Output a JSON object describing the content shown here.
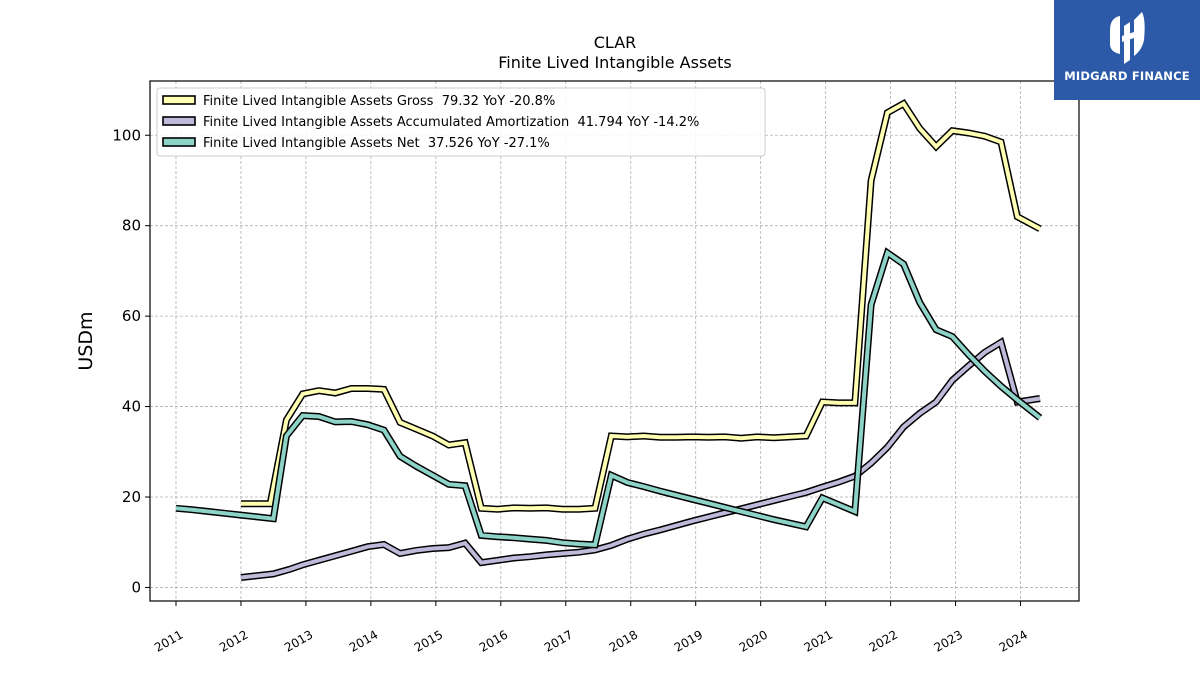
{
  "chart_data": {
    "type": "line",
    "title": "CLAR",
    "subtitle": "Finite Lived Intangible Assets",
    "ylabel": "USDm",
    "xlabel": "",
    "ylim": [
      -3,
      112
    ],
    "xlim": [
      2010.6,
      2024.9
    ],
    "yticks": [
      0,
      20,
      40,
      60,
      80,
      100
    ],
    "ytick_labels": [
      "0",
      "20",
      "40",
      "60",
      "80",
      "100"
    ],
    "xticks": [
      2011,
      2012,
      2013,
      2014,
      2015,
      2016,
      2017,
      2018,
      2019,
      2020,
      2021,
      2022,
      2023,
      2024
    ],
    "xtick_labels": [
      "2011",
      "2012",
      "2013",
      "2014",
      "2015",
      "2016",
      "2017",
      "2018",
      "2019",
      "2020",
      "2021",
      "2022",
      "2023",
      "2024"
    ],
    "grid": true,
    "legend_position": "top-left",
    "series": [
      {
        "name": "Finite Lived Intangible Assets Gross  79.32 YoY -20.8%",
        "color": "#ffffb3",
        "points": [
          [
            2012.0,
            18.5
          ],
          [
            2012.45,
            18.5
          ],
          [
            2012.7,
            37.0
          ],
          [
            2012.95,
            42.8
          ],
          [
            2013.2,
            43.5
          ],
          [
            2013.45,
            43.0
          ],
          [
            2013.7,
            44.0
          ],
          [
            2013.95,
            44.0
          ],
          [
            2014.2,
            43.8
          ],
          [
            2014.45,
            36.5
          ],
          [
            2014.7,
            35.0
          ],
          [
            2014.95,
            33.5
          ],
          [
            2015.2,
            31.5
          ],
          [
            2015.45,
            32.0
          ],
          [
            2015.7,
            17.5
          ],
          [
            2015.95,
            17.3
          ],
          [
            2016.2,
            17.6
          ],
          [
            2016.45,
            17.5
          ],
          [
            2016.7,
            17.6
          ],
          [
            2016.95,
            17.3
          ],
          [
            2017.2,
            17.3
          ],
          [
            2017.45,
            17.5
          ],
          [
            2017.7,
            33.5
          ],
          [
            2017.95,
            33.3
          ],
          [
            2018.2,
            33.5
          ],
          [
            2018.45,
            33.2
          ],
          [
            2018.7,
            33.2
          ],
          [
            2018.95,
            33.3
          ],
          [
            2019.2,
            33.2
          ],
          [
            2019.45,
            33.3
          ],
          [
            2019.7,
            33.0
          ],
          [
            2019.95,
            33.3
          ],
          [
            2020.2,
            33.1
          ],
          [
            2020.45,
            33.3
          ],
          [
            2020.7,
            33.5
          ],
          [
            2020.95,
            41.0
          ],
          [
            2021.2,
            40.8
          ],
          [
            2021.45,
            40.8
          ],
          [
            2021.7,
            90.0
          ],
          [
            2021.95,
            105.0
          ],
          [
            2022.2,
            107.0
          ],
          [
            2022.45,
            101.5
          ],
          [
            2022.7,
            97.5
          ],
          [
            2022.95,
            101.0
          ],
          [
            2023.2,
            100.5
          ],
          [
            2023.45,
            99.8
          ],
          [
            2023.7,
            98.5
          ],
          [
            2023.95,
            82.0
          ],
          [
            2024.3,
            79.32
          ]
        ]
      },
      {
        "name": "Finite Lived Intangible Assets Accumulated Amortization  41.794 YoY -14.2%",
        "color": "#bebada",
        "points": [
          [
            2012.0,
            2.2
          ],
          [
            2012.5,
            3.0
          ],
          [
            2012.75,
            4.0
          ],
          [
            2012.95,
            5.0
          ],
          [
            2013.2,
            6.0
          ],
          [
            2013.45,
            7.0
          ],
          [
            2013.7,
            8.0
          ],
          [
            2013.95,
            9.0
          ],
          [
            2014.2,
            9.5
          ],
          [
            2014.45,
            7.5
          ],
          [
            2014.7,
            8.2
          ],
          [
            2014.95,
            8.6
          ],
          [
            2015.2,
            8.8
          ],
          [
            2015.45,
            9.8
          ],
          [
            2015.7,
            5.5
          ],
          [
            2015.95,
            6.0
          ],
          [
            2016.2,
            6.5
          ],
          [
            2016.45,
            6.8
          ],
          [
            2016.7,
            7.2
          ],
          [
            2016.95,
            7.5
          ],
          [
            2017.2,
            7.8
          ],
          [
            2017.45,
            8.3
          ],
          [
            2017.7,
            9.3
          ],
          [
            2017.95,
            10.7
          ],
          [
            2018.2,
            11.8
          ],
          [
            2018.45,
            12.7
          ],
          [
            2018.7,
            13.7
          ],
          [
            2018.95,
            14.7
          ],
          [
            2019.2,
            15.6
          ],
          [
            2019.45,
            16.5
          ],
          [
            2019.7,
            17.4
          ],
          [
            2019.95,
            18.3
          ],
          [
            2020.2,
            19.2
          ],
          [
            2020.45,
            20.1
          ],
          [
            2020.7,
            21.0
          ],
          [
            2020.95,
            22.2
          ],
          [
            2021.2,
            23.3
          ],
          [
            2021.45,
            24.6
          ],
          [
            2021.7,
            27.5
          ],
          [
            2021.95,
            31.0
          ],
          [
            2022.2,
            35.5
          ],
          [
            2022.45,
            38.5
          ],
          [
            2022.7,
            41.0
          ],
          [
            2022.95,
            45.8
          ],
          [
            2023.2,
            49.0
          ],
          [
            2023.45,
            52.0
          ],
          [
            2023.7,
            54.2
          ],
          [
            2023.95,
            41.0
          ],
          [
            2024.3,
            41.794
          ]
        ]
      },
      {
        "name": "Finite Lived Intangible Assets Net  37.526 YoY -27.1%",
        "color": "#8dd3c7",
        "points": [
          [
            2011.0,
            17.5
          ],
          [
            2011.25,
            17.2
          ],
          [
            2011.5,
            16.8
          ],
          [
            2011.75,
            16.4
          ],
          [
            2012.0,
            16.0
          ],
          [
            2012.25,
            15.6
          ],
          [
            2012.5,
            15.2
          ],
          [
            2012.7,
            33.5
          ],
          [
            2012.95,
            38.0
          ],
          [
            2013.2,
            37.8
          ],
          [
            2013.45,
            36.6
          ],
          [
            2013.7,
            36.7
          ],
          [
            2013.95,
            36.0
          ],
          [
            2014.2,
            34.8
          ],
          [
            2014.45,
            29.0
          ],
          [
            2014.7,
            26.8
          ],
          [
            2014.95,
            24.8
          ],
          [
            2015.2,
            22.8
          ],
          [
            2015.45,
            22.5
          ],
          [
            2015.7,
            11.5
          ],
          [
            2015.95,
            11.2
          ],
          [
            2016.2,
            11.0
          ],
          [
            2016.45,
            10.7
          ],
          [
            2016.7,
            10.4
          ],
          [
            2016.95,
            9.9
          ],
          [
            2017.2,
            9.6
          ],
          [
            2017.45,
            9.4
          ],
          [
            2017.7,
            24.8
          ],
          [
            2017.95,
            23.2
          ],
          [
            2018.2,
            22.3
          ],
          [
            2018.45,
            21.3
          ],
          [
            2018.7,
            20.4
          ],
          [
            2018.95,
            19.5
          ],
          [
            2019.2,
            18.6
          ],
          [
            2019.45,
            17.7
          ],
          [
            2019.7,
            16.8
          ],
          [
            2019.95,
            15.9
          ],
          [
            2020.2,
            15.0
          ],
          [
            2020.45,
            14.2
          ],
          [
            2020.7,
            13.4
          ],
          [
            2020.95,
            19.8
          ],
          [
            2021.2,
            18.3
          ],
          [
            2021.45,
            16.8
          ],
          [
            2021.7,
            62.5
          ],
          [
            2021.95,
            74.0
          ],
          [
            2022.2,
            71.5
          ],
          [
            2022.45,
            63.0
          ],
          [
            2022.7,
            57.0
          ],
          [
            2022.95,
            55.5
          ],
          [
            2023.2,
            51.5
          ],
          [
            2023.45,
            47.8
          ],
          [
            2023.7,
            44.5
          ],
          [
            2023.95,
            41.5
          ],
          [
            2024.3,
            37.526
          ]
        ]
      }
    ]
  },
  "branding": {
    "logo_text": "MIDGARD FINANCE",
    "logo_bg": "#2c5aa8",
    "logo_icon": "midgard-logo-icon"
  }
}
